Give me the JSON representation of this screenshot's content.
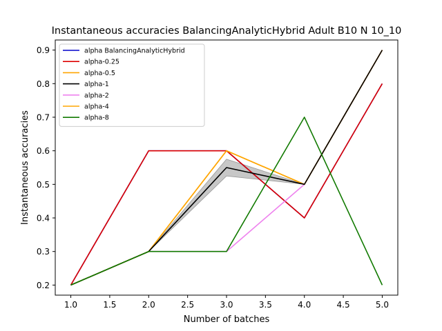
{
  "chart_data": {
    "type": "line",
    "title": "Instantaneous accuracies BalancingAnalyticHybrid Adult B10 N 10_10",
    "xlabel": "Number of batches",
    "ylabel": "Instantaneous accuracies",
    "xlim": [
      0.8,
      5.2
    ],
    "ylim": [
      0.17,
      0.93
    ],
    "xticks": [
      "1.0",
      "1.5",
      "2.0",
      "2.5",
      "3.0",
      "3.5",
      "4.0",
      "4.5",
      "5.0"
    ],
    "yticks": [
      "0.2",
      "0.3",
      "0.4",
      "0.5",
      "0.6",
      "0.7",
      "0.8",
      "0.9"
    ],
    "grid": false,
    "legend_position": "top-left",
    "x": [
      1,
      2,
      3,
      4,
      5
    ],
    "band": {
      "x": [
        1,
        2,
        3,
        4,
        5
      ],
      "lower": [
        0.2,
        0.3,
        0.525,
        0.5,
        0.9
      ],
      "upper": [
        0.2,
        0.3,
        0.575,
        0.5,
        0.9
      ],
      "color": "#bdbdbd"
    },
    "series": [
      {
        "name": "alpha BalancingAnalyticHybrid",
        "color": "#0000cc",
        "values": [
          0.2,
          0.6,
          0.6,
          0.4,
          0.8
        ]
      },
      {
        "name": "alpha-0.25",
        "color": "#dd0000",
        "values": [
          0.2,
          0.6,
          0.6,
          0.4,
          0.8
        ]
      },
      {
        "name": "alpha-0.5",
        "color": "#ffa500",
        "values": [
          0.2,
          0.3,
          0.6,
          0.5,
          0.9
        ]
      },
      {
        "name": "alpha-1",
        "color": "#000000",
        "values": [
          0.2,
          0.3,
          0.55,
          0.5,
          0.9
        ]
      },
      {
        "name": "alpha-2",
        "color": "#ee82ee",
        "values": [
          0.2,
          0.3,
          0.3,
          0.5,
          0.9
        ]
      },
      {
        "name": "alpha-4",
        "color": "#ffa500",
        "values": [
          0.2,
          0.3,
          0.6,
          0.5,
          0.9
        ]
      },
      {
        "name": "alpha-8",
        "color": "#117a00",
        "values": [
          0.2,
          0.3,
          0.3,
          0.7,
          0.2
        ]
      }
    ]
  }
}
